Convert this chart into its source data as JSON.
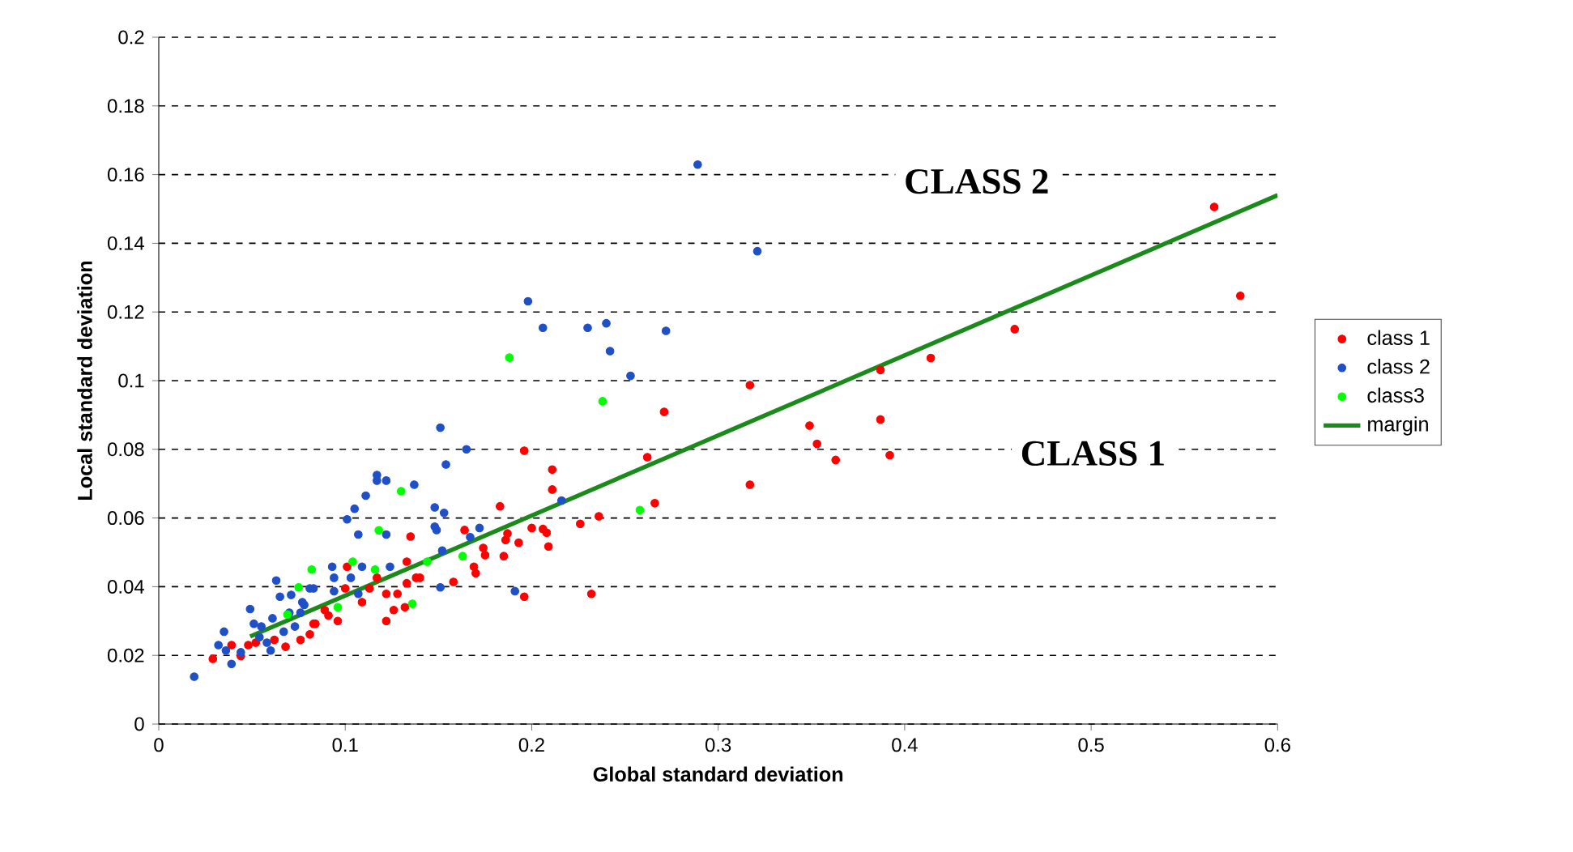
{
  "chart_data": {
    "type": "scatter",
    "xlabel": "Global standard deviation",
    "ylabel": "Local standard deviation",
    "xlim": [
      0,
      0.6
    ],
    "ylim": [
      0,
      0.2
    ],
    "xticks": [
      0,
      0.1,
      0.2,
      0.3,
      0.4,
      0.5,
      0.6
    ],
    "yticks": [
      0,
      0.02,
      0.04,
      0.06,
      0.08,
      0.1,
      0.12,
      0.14,
      0.16,
      0.18,
      0.2
    ],
    "grid": "y",
    "legend": "right",
    "marker": "circle",
    "annotations": [
      "CLASS 2",
      "CLASS 1"
    ],
    "series": [
      {
        "name": "class 1",
        "color": "#ff0000",
        "x": [
          0.566,
          0.58,
          0.459,
          0.414,
          0.387,
          0.387,
          0.392,
          0.349,
          0.353,
          0.363,
          0.317,
          0.317,
          0.271,
          0.262,
          0.266,
          0.236,
          0.226,
          0.232,
          0.196,
          0.211,
          0.211,
          0.183,
          0.187,
          0.2,
          0.206,
          0.208,
          0.193,
          0.186,
          0.209,
          0.185,
          0.175,
          0.196,
          0.135,
          0.133,
          0.138,
          0.14,
          0.133,
          0.128,
          0.122,
          0.126,
          0.122,
          0.132,
          0.158,
          0.164,
          0.169,
          0.17,
          0.174,
          0.117,
          0.113,
          0.109,
          0.1,
          0.091,
          0.096,
          0.089,
          0.083,
          0.101,
          0.029,
          0.039,
          0.044,
          0.048,
          0.068,
          0.076,
          0.081,
          0.084,
          0.062,
          0.052
        ],
        "values": [
          0.1506,
          0.1247,
          0.115,
          0.1066,
          0.1031,
          0.0887,
          0.0783,
          0.0869,
          0.0816,
          0.0769,
          0.0987,
          0.0697,
          0.0909,
          0.0777,
          0.0643,
          0.0605,
          0.0583,
          0.0379,
          0.0796,
          0.0741,
          0.0683,
          0.0634,
          0.0555,
          0.0571,
          0.0568,
          0.0557,
          0.0528,
          0.0536,
          0.0517,
          0.0489,
          0.0492,
          0.0371,
          0.0546,
          0.0473,
          0.0426,
          0.0426,
          0.041,
          0.0379,
          0.0379,
          0.0332,
          0.03,
          0.034,
          0.0414,
          0.0565,
          0.0458,
          0.0439,
          0.0513,
          0.0426,
          0.0395,
          0.0355,
          0.0395,
          0.0316,
          0.03,
          0.0332,
          0.0292,
          0.0458,
          0.019,
          0.023,
          0.0198,
          0.023,
          0.0225,
          0.0245,
          0.0261,
          0.0292,
          0.0245,
          0.0237
        ]
      },
      {
        "name": "class 2",
        "color": "#2050c8",
        "x": [
          0.289,
          0.321,
          0.198,
          0.206,
          0.23,
          0.24,
          0.242,
          0.272,
          0.253,
          0.216,
          0.191,
          0.151,
          0.165,
          0.154,
          0.137,
          0.117,
          0.122,
          0.117,
          0.111,
          0.105,
          0.101,
          0.107,
          0.122,
          0.148,
          0.153,
          0.148,
          0.149,
          0.172,
          0.167,
          0.152,
          0.151,
          0.124,
          0.109,
          0.093,
          0.094,
          0.103,
          0.107,
          0.094,
          0.083,
          0.077,
          0.019,
          0.049,
          0.063,
          0.065,
          0.071,
          0.035,
          0.032,
          0.036,
          0.039,
          0.044,
          0.051,
          0.055,
          0.058,
          0.06,
          0.054,
          0.067,
          0.073,
          0.07,
          0.078,
          0.081,
          0.076,
          0.061
        ],
        "values": [
          0.1629,
          0.1377,
          0.1231,
          0.1154,
          0.1154,
          0.1167,
          0.1086,
          0.1145,
          0.1014,
          0.0651,
          0.0387,
          0.0863,
          0.08,
          0.0756,
          0.0697,
          0.0725,
          0.0709,
          0.0709,
          0.0665,
          0.0627,
          0.0596,
          0.0552,
          0.0552,
          0.0631,
          0.0615,
          0.0575,
          0.0565,
          0.0571,
          0.0544,
          0.0505,
          0.0398,
          0.0458,
          0.0458,
          0.0458,
          0.0426,
          0.0426,
          0.0379,
          0.0387,
          0.0395,
          0.0355,
          0.0138,
          0.0335,
          0.0418,
          0.0371,
          0.0376,
          0.0269,
          0.023,
          0.0214,
          0.0175,
          0.0209,
          0.0292,
          0.0284,
          0.0237,
          0.0214,
          0.0253,
          0.0269,
          0.0284,
          0.0324,
          0.0347,
          0.0395,
          0.0324,
          0.0308
        ]
      },
      {
        "name": "class3",
        "color": "#00ff00",
        "x": [
          0.188,
          0.238,
          0.258,
          0.13,
          0.118,
          0.082,
          0.104,
          0.116,
          0.163,
          0.144,
          0.136,
          0.096,
          0.075,
          0.069
        ],
        "values": [
          0.1067,
          0.094,
          0.0623,
          0.0678,
          0.0564,
          0.045,
          0.0473,
          0.045,
          0.0489,
          0.0473,
          0.035,
          0.034,
          0.0398,
          0.0319
        ]
      },
      {
        "name": "margin",
        "type": "line",
        "marker": "none",
        "color": "#1a8a1a",
        "x": [
          0.049,
          0.6
        ],
        "values": [
          0.0255,
          0.154
        ]
      }
    ]
  }
}
